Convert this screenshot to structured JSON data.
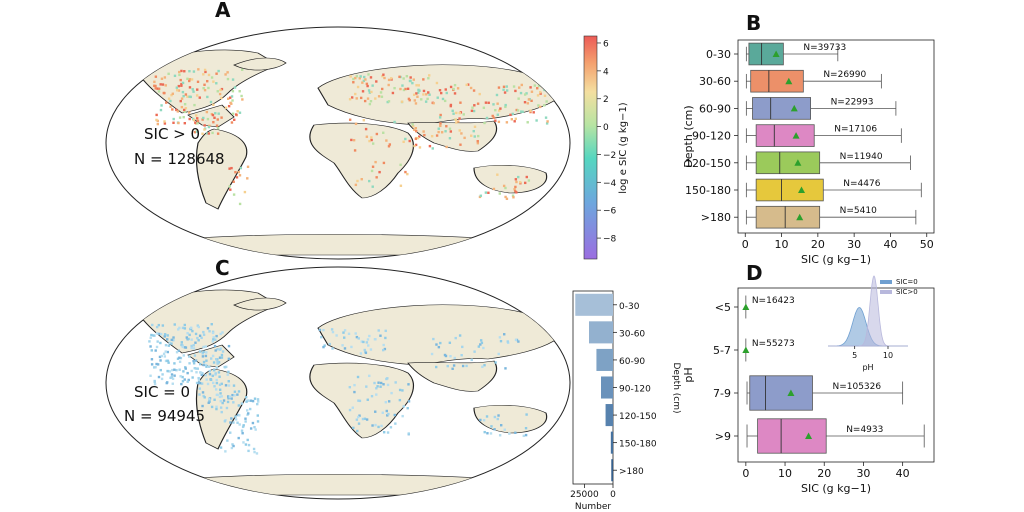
{
  "panels": {
    "A": {
      "letter": "A",
      "annotation_line1": "SIC > 0",
      "annotation_line2": "N = 128648",
      "colorbar": {
        "label": "log e SIC (g kg−1)",
        "ticks": [
          6,
          4,
          2,
          0,
          -2,
          -4,
          -6,
          -8
        ],
        "range": [
          -9.5,
          6.5
        ]
      }
    },
    "C": {
      "letter": "C",
      "annotation_line1": "SIC = 0",
      "annotation_line2": "N = 94945"
    },
    "B": {
      "letter": "B"
    },
    "D": {
      "letter": "D"
    }
  },
  "chart_data": [
    {
      "id": "B",
      "type": "box",
      "orientation": "horizontal",
      "title": "",
      "xlabel": "SIC (g kg−1)",
      "ylabel": "Depth (cm)",
      "xlim": [
        -2,
        52
      ],
      "xticks": [
        0,
        10,
        20,
        30,
        40,
        50
      ],
      "categories": [
        "0-30",
        "30-60",
        "60-90",
        "90-120",
        "120-150",
        "150-180",
        ">180"
      ],
      "series": [
        {
          "category": "0-30",
          "whisker_low": 0.3,
          "q1": 1,
          "median": 4.5,
          "q3": 10.5,
          "whisker_high": 25.5,
          "mean": 8.5,
          "n_label": "N=39733",
          "color": "#5aa99a"
        },
        {
          "category": "30-60",
          "whisker_low": 0.3,
          "q1": 1.5,
          "median": 6.5,
          "q3": 16,
          "whisker_high": 37.5,
          "mean": 12,
          "n_label": "N=26990",
          "color": "#ec9069"
        },
        {
          "category": "60-90",
          "whisker_low": 0.3,
          "q1": 2,
          "median": 7,
          "q3": 18,
          "whisker_high": 41.5,
          "mean": 13.5,
          "n_label": "N=22993",
          "color": "#8d9cca"
        },
        {
          "category": "90-120",
          "whisker_low": 0.3,
          "q1": 3,
          "median": 8,
          "q3": 19,
          "whisker_high": 43,
          "mean": 14,
          "n_label": "N=17106",
          "color": "#dd88c4"
        },
        {
          "category": "120-150",
          "whisker_low": 0.3,
          "q1": 3,
          "median": 9.5,
          "q3": 20.5,
          "whisker_high": 45.5,
          "mean": 14.5,
          "n_label": "N=11940",
          "color": "#9bca5b"
        },
        {
          "category": "150-180",
          "whisker_low": 0.3,
          "q1": 3,
          "median": 10,
          "q3": 21.5,
          "whisker_high": 48.5,
          "mean": 15.5,
          "n_label": "N=4476",
          "color": "#e6c83c"
        },
        {
          "category": ">180",
          "whisker_low": 0.3,
          "q1": 3,
          "median": 11,
          "q3": 20.5,
          "whisker_high": 47,
          "mean": 15,
          "n_label": "N=5410",
          "color": "#d6bb8c"
        }
      ]
    },
    {
      "id": "C-inset",
      "type": "bar",
      "orientation": "horizontal",
      "xlabel": "Number",
      "ylabel": "Depth (cm)",
      "xlim": [
        0,
        35000
      ],
      "xticks": [
        25000,
        0
      ],
      "categories": [
        "0-30",
        "30-60",
        "60-90",
        "90-120",
        "120-150",
        "150-180",
        ">180"
      ],
      "values": [
        33000,
        21000,
        14500,
        10500,
        6500,
        1900,
        1500
      ],
      "colors": [
        "#a6bfd8",
        "#93b1cf",
        "#7ea2c5",
        "#6a92bb",
        "#5782ae",
        "#46729f",
        "#355f8c"
      ]
    },
    {
      "id": "D",
      "type": "box",
      "orientation": "horizontal",
      "xlabel": "SIC (g kg−1)",
      "ylabel": "pH",
      "xlim": [
        -2,
        48
      ],
      "xticks": [
        0,
        10,
        20,
        30,
        40
      ],
      "categories": [
        "<5",
        "5-7",
        "7-9",
        ">9"
      ],
      "series": [
        {
          "category": "<5",
          "whisker_low": 0,
          "q1": 0,
          "median": 0,
          "q3": 0,
          "whisker_high": 0,
          "mean": 0,
          "n_label": "N=16423",
          "color": "#5aa99a"
        },
        {
          "category": "5-7",
          "whisker_low": 0,
          "q1": 0,
          "median": 0,
          "q3": 0,
          "whisker_high": 0,
          "mean": 0,
          "n_label": "N=55273",
          "color": "#ec9069"
        },
        {
          "category": "7-9",
          "whisker_low": 0.3,
          "q1": 1,
          "median": 5,
          "q3": 17,
          "whisker_high": 40,
          "mean": 11.5,
          "n_label": "N=105326",
          "color": "#8d9cca"
        },
        {
          "category": ">9",
          "whisker_low": 0.3,
          "q1": 3,
          "median": 9,
          "q3": 20.5,
          "whisker_high": 45.5,
          "mean": 16,
          "n_label": "N=4933",
          "color": "#dd88c4"
        }
      ]
    },
    {
      "id": "D-inset",
      "type": "area",
      "xlabel": "pH",
      "xlim": [
        1,
        13
      ],
      "xticks": [
        5,
        10
      ],
      "legend": [
        "SIC=0",
        "SIC>0"
      ],
      "series": [
        {
          "name": "SIC=0",
          "peak_x": 5.7,
          "sd": 1.0,
          "rel_height": 0.55,
          "color": "#6f9fd0"
        },
        {
          "name": "SIC>0",
          "peak_x": 7.9,
          "sd": 0.6,
          "rel_height": 1.0,
          "color": "#b8b8dc"
        }
      ]
    }
  ]
}
